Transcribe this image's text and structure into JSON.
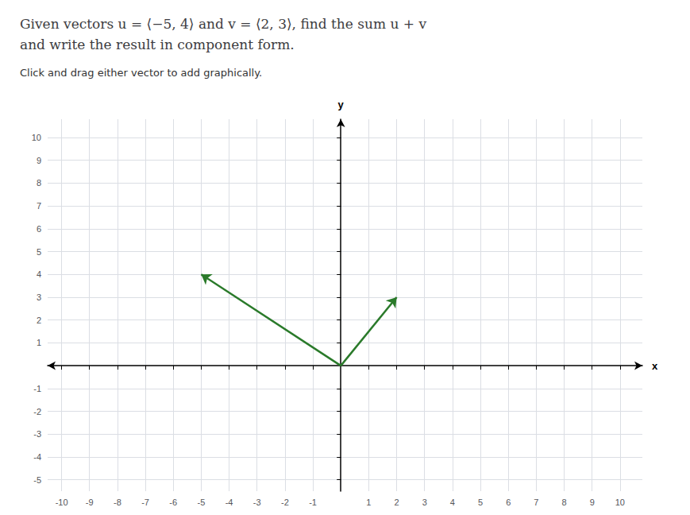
{
  "chart_data": {
    "type": "vector",
    "title": "Given vectors u = ⟨−5, 4⟩ and v = ⟨2, 3⟩, find the sum u + v\nand write the result in component form.",
    "subtitle": "Click and drag either vector to add graphically.",
    "x_label": "x",
    "y_label": "y",
    "series": [
      {
        "x": [
          0,
          -5
        ],
        "y": [
          0,
          4
        ],
        "color": "#2a7a2a"
      },
      {
        "x": [
          0,
          2
        ],
        "y": [
          0,
          3
        ],
        "color": "#2a7a2a"
      }
    ],
    "xlim": [
      -10.5,
      10.8
    ],
    "ylim": [
      -5.5,
      10.8
    ],
    "xticks": [
      -10,
      -9,
      -8,
      -7,
      -6,
      -5,
      -4,
      -3,
      -2,
      -1,
      1,
      2,
      3,
      4,
      5,
      6,
      7,
      8,
      9,
      10
    ],
    "yticks": [
      -5,
      -4,
      -3,
      -2,
      -1,
      1,
      2,
      3,
      4,
      5,
      6,
      7,
      8,
      9,
      10
    ],
    "grid": true
  }
}
